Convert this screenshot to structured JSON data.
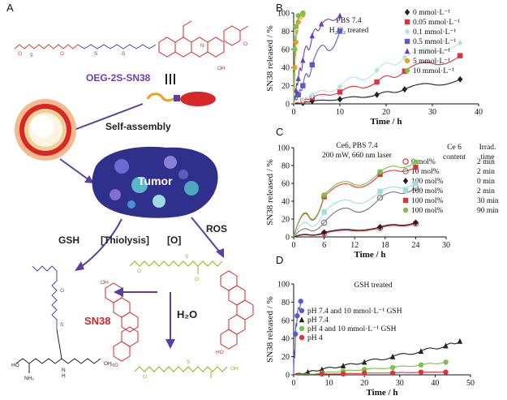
{
  "panels": {
    "A": "A",
    "B": "B",
    "C": "C",
    "D": "D"
  },
  "scheme": {
    "compound_label": "OEG-2S-SN38",
    "self_assembly": "Self-assembly",
    "tumor": "Tumor",
    "gsh": "GSH",
    "thiolysis": "[Thiolysis]",
    "ros": "ROS",
    "oxidation": "[O]",
    "sn38": "SN38",
    "water": "H₂O",
    "peg_subscript": "9",
    "atoms": {
      "oh": "OH",
      "ho": "HO",
      "o": "O",
      "s": "S",
      "n": "N",
      "h": "H",
      "nh2": "NH₂"
    },
    "colors": {
      "peg": "#c8472a",
      "sn38": "#d62828",
      "linker": "#6a3fb5",
      "sulfone": "#8fb51a",
      "arrow": "#5b3fa0",
      "tumor": "#2f2f8c"
    }
  },
  "axis_common": {
    "ylabel": "SN38 released / %",
    "xlabel": "Time / h"
  },
  "chart_data": [
    {
      "id": "B",
      "type": "scatter",
      "annotation": [
        "PBS 7.4",
        "H₂O₂ treated"
      ],
      "xlabel": "Time / h",
      "ylabel": "SN38 released / %",
      "xlim": [
        0,
        40
      ],
      "ylim": [
        0,
        100
      ],
      "xticks": [
        0,
        10,
        20,
        30,
        40
      ],
      "yticks": [
        0,
        20,
        40,
        60,
        80,
        100
      ],
      "legend_position": "right",
      "series": [
        {
          "name": "0 mmol·L⁻¹",
          "color": "#222222",
          "marker": "diamond",
          "x": [
            0,
            2,
            4,
            10,
            18,
            24,
            36
          ],
          "y": [
            0,
            1,
            3,
            5,
            10,
            16,
            27
          ]
        },
        {
          "name": "0.05 mmol·L⁻¹",
          "color": "#e0323c",
          "marker": "square",
          "x": [
            0,
            2,
            4,
            10,
            18,
            24,
            36
          ],
          "y": [
            0,
            3,
            7,
            13,
            24,
            36,
            53
          ]
        },
        {
          "name": "0.1 mmol·L⁻¹",
          "color": "#b7e3e3",
          "marker": "diamond",
          "x": [
            0,
            2,
            4,
            10,
            18,
            24,
            36
          ],
          "y": [
            0,
            4,
            9,
            19,
            37,
            51,
            67
          ]
        },
        {
          "name": "0.5 mmol·L⁻¹",
          "color": "#5a5ac8",
          "marker": "square",
          "x": [
            0,
            1,
            2,
            4,
            10
          ],
          "y": [
            0,
            10,
            20,
            43,
            80
          ]
        },
        {
          "name": "1 mmol·L⁻¹",
          "color": "#6a3fb5",
          "marker": "triangle",
          "x": [
            0,
            0.5,
            1,
            2,
            4,
            6,
            10
          ],
          "y": [
            0,
            15,
            28,
            48,
            75,
            88,
            97
          ]
        },
        {
          "name": "5 mmol·L⁻¹",
          "color": "#f0a020",
          "marker": "circle",
          "x": [
            0,
            0.25,
            0.5,
            1,
            2
          ],
          "y": [
            0,
            40,
            68,
            90,
            98
          ]
        },
        {
          "name": "10 mmol·L⁻¹",
          "color": "#7cc242",
          "marker": "circle",
          "x": [
            0,
            0.25,
            0.5,
            1,
            2
          ],
          "y": [
            0,
            60,
            85,
            97,
            100
          ]
        }
      ]
    },
    {
      "id": "C",
      "type": "scatter",
      "annotation": [
        "Ce6, PBS 7.4",
        "200 mW, 660 nm laser"
      ],
      "column_headers": [
        "Ce 6",
        "content",
        "Irrad.",
        "time"
      ],
      "xlabel": "Time / h",
      "ylabel": "SN38 released / %",
      "xlim": [
        0,
        30
      ],
      "ylim": [
        0,
        100
      ],
      "xticks": [
        0,
        6,
        12,
        18,
        24,
        30
      ],
      "yticks": [
        0,
        20,
        40,
        60,
        80,
        100
      ],
      "legend_position": "right",
      "series": [
        {
          "name": "0 mol%",
          "time": "2 min",
          "color": "#e0323c",
          "marker": "circle-open",
          "x": [
            0,
            6,
            17,
            24
          ],
          "y": [
            0,
            4,
            10,
            15
          ]
        },
        {
          "name": "10 mol%",
          "time": "2 min",
          "color": "#7a7a7a",
          "marker": "circle-open",
          "x": [
            0,
            6,
            17,
            24
          ],
          "y": [
            0,
            16,
            44,
            55
          ]
        },
        {
          "name": "100 mol%",
          "time": "0 min",
          "color": "#222222",
          "marker": "diamond",
          "x": [
            0,
            6,
            17,
            24
          ],
          "y": [
            0,
            5,
            11,
            16
          ]
        },
        {
          "name": "100 mol%",
          "time": "2 min",
          "color": "#9fdede",
          "marker": "square",
          "x": [
            0,
            6,
            17,
            24
          ],
          "y": [
            0,
            28,
            51,
            60
          ]
        },
        {
          "name": "100 mol%",
          "time": "30 min",
          "color": "#e0323c",
          "marker": "square",
          "x": [
            0,
            6,
            17,
            24
          ],
          "y": [
            0,
            45,
            70,
            78
          ]
        },
        {
          "name": "100 mol%",
          "time": "90 min",
          "color": "#7cc242",
          "marker": "circle",
          "x": [
            0,
            6,
            17,
            24
          ],
          "y": [
            0,
            47,
            73,
            84
          ]
        }
      ]
    },
    {
      "id": "D",
      "type": "scatter",
      "annotation": [
        "GSH treated"
      ],
      "xlabel": "Time / h",
      "ylabel": "SN38 released / %",
      "xlim": [
        0,
        50
      ],
      "ylim": [
        0,
        100
      ],
      "xticks": [
        0,
        10,
        20,
        30,
        40,
        50
      ],
      "yticks": [
        0,
        20,
        40,
        60,
        80,
        100
      ],
      "legend_position": "top-left",
      "series": [
        {
          "name": "pH 7.4 and 10 mmol·L⁻¹ GSH",
          "color": "#5a5ac8",
          "marker": "circle",
          "x": [
            0,
            0.5,
            1,
            2
          ],
          "y": [
            0,
            45,
            65,
            81
          ]
        },
        {
          "name": "pH 7.4",
          "color": "#222222",
          "marker": "triangle",
          "x": [
            0,
            4,
            8,
            14,
            20,
            28,
            36,
            43,
            47
          ],
          "y": [
            0,
            3,
            6,
            10,
            14,
            20,
            26,
            32,
            37
          ]
        },
        {
          "name": "pH 4 and 10 mmol·L⁻¹ GSH",
          "color": "#7cc242",
          "marker": "circle",
          "x": [
            0,
            8,
            14,
            20,
            28,
            36,
            43
          ],
          "y": [
            0,
            2,
            4,
            6,
            8,
            11,
            14
          ]
        },
        {
          "name": "pH 4",
          "color": "#e0323c",
          "marker": "circle",
          "x": [
            0,
            8,
            14,
            20,
            28,
            36,
            43
          ],
          "y": [
            0,
            1,
            1,
            2,
            2,
            3,
            3
          ]
        }
      ]
    }
  ]
}
